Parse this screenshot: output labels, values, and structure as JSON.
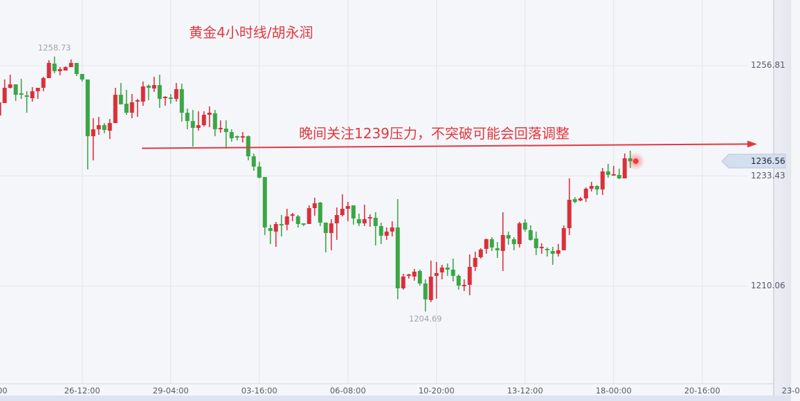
{
  "title": "黄金4小时线/胡永润",
  "annotation": "晚间关注1239压力，不突破可能会回落调整",
  "colors": {
    "up": "#d9303a",
    "down": "#3aa645",
    "annotation": "#e0393f",
    "grid": "#e3e5ec",
    "price_tag": "#d3deef"
  },
  "chart_data": {
    "type": "candlestick",
    "title": "黄金4小时线/胡永润",
    "y_ticks": [
      1256.81,
      1233.43,
      1210.06
    ],
    "x_ticks": [
      "00",
      "26-12:00",
      "29-04:00",
      "03-16:00",
      "06-08:00",
      "10-20:00",
      "13-12:00",
      "18-00:00",
      "20-16:00",
      "23-0"
    ],
    "grid": true,
    "current_price": 1236.56,
    "high_label": 1258.73,
    "low_label": 1204.69,
    "resistance_line": {
      "label": "晚间关注1239压力，不突破可能会回落调整",
      "from_price": 1239.3,
      "to_price": 1240.2
    },
    "candles_ohlc": [
      [
        1246.26,
        1249.33,
        1246.11,
        1249.04
      ],
      [
        1248.89,
        1253.88,
        1248.89,
        1252.12
      ],
      [
        1252.12,
        1254.9,
        1251.97,
        1252.85
      ],
      [
        1252.85,
        1252.85,
        1249.33,
        1250.65
      ],
      [
        1250.95,
        1254.02,
        1249.77,
        1250.65
      ],
      [
        1250.51,
        1251.39,
        1246.84,
        1250.21
      ],
      [
        1249.92,
        1252.26,
        1249.19,
        1251.39
      ],
      [
        1251.39,
        1252.12,
        1249.77,
        1252.12
      ],
      [
        1252.12,
        1254.46,
        1251.39,
        1254.17
      ],
      [
        1254.17,
        1257.98,
        1254.17,
        1257.39
      ],
      [
        1257.25,
        1258.73,
        1255.2,
        1255.64
      ],
      [
        1255.64,
        1256.51,
        1254.76,
        1256.07
      ],
      [
        1255.78,
        1256.66,
        1255.78,
        1256.51
      ],
      [
        1256.51,
        1258.13,
        1256.51,
        1257.39
      ],
      [
        1257.39,
        1257.39,
        1254.61,
        1255.05
      ],
      [
        1255.05,
        1255.05,
        1253.44,
        1253.88
      ],
      [
        1253.88,
        1253.88,
        1234.83,
        1241.86
      ],
      [
        1241.86,
        1245.67,
        1236.73,
        1243.33
      ],
      [
        1243.33,
        1245.96,
        1242.15,
        1244.2
      ],
      [
        1244.2,
        1244.64,
        1242.45,
        1243.18
      ],
      [
        1243.03,
        1245.52,
        1241.27,
        1244.64
      ],
      [
        1244.64,
        1252.12,
        1244.64,
        1250.65
      ],
      [
        1250.65,
        1253.14,
        1248.6,
        1248.6
      ],
      [
        1248.75,
        1251.68,
        1246.4,
        1246.84
      ],
      [
        1246.84,
        1250.8,
        1245.67,
        1249.04
      ],
      [
        1249.19,
        1249.77,
        1245.96,
        1249.48
      ],
      [
        1249.19,
        1253.44,
        1248.31,
        1252.41
      ],
      [
        1252.56,
        1252.85,
        1249.48,
        1252.12
      ],
      [
        1251.97,
        1254.46,
        1251.24,
        1252.7
      ],
      [
        1252.7,
        1254.9,
        1247.87,
        1249.77
      ],
      [
        1249.92,
        1250.36,
        1248.31,
        1250.21
      ],
      [
        1250.07,
        1250.8,
        1248.75,
        1249.77
      ],
      [
        1249.77,
        1253.14,
        1249.19,
        1251.83
      ],
      [
        1251.83,
        1253.0,
        1244.94,
        1246.84
      ],
      [
        1246.84,
        1247.72,
        1243.33,
        1245.08
      ],
      [
        1245.08,
        1247.43,
        1239.66,
        1243.62
      ],
      [
        1243.62,
        1247.14,
        1243.03,
        1244.2
      ],
      [
        1244.2,
        1247.14,
        1243.91,
        1246.4
      ],
      [
        1246.4,
        1248.16,
        1243.76,
        1246.84
      ],
      [
        1246.7,
        1247.43,
        1241.86,
        1243.33
      ],
      [
        1243.33,
        1245.23,
        1242.59,
        1243.62
      ],
      [
        1243.47,
        1245.23,
        1239.22,
        1242.74
      ],
      [
        1242.74,
        1243.33,
        1240.69,
        1241.42
      ],
      [
        1241.86,
        1242.01,
        1240.98,
        1241.57
      ],
      [
        1241.57,
        1242.74,
        1240.54,
        1241.86
      ],
      [
        1241.86,
        1242.01,
        1236.73,
        1237.61
      ],
      [
        1237.61,
        1238.2,
        1234.53,
        1235.41
      ],
      [
        1235.41,
        1236.44,
        1232.92,
        1233.07
      ],
      [
        1233.21,
        1233.21,
        1220.9,
        1222.52
      ],
      [
        1222.37,
        1223.1,
        1219.0,
        1221.78
      ],
      [
        1221.64,
        1223.69,
        1218.41,
        1223.25
      ],
      [
        1223.25,
        1225.15,
        1220.61,
        1222.95
      ],
      [
        1223.1,
        1226.47,
        1221.93,
        1224.86
      ],
      [
        1225.01,
        1225.59,
        1223.83,
        1225.3
      ],
      [
        1224.86,
        1225.15,
        1222.52,
        1223.25
      ],
      [
        1223.39,
        1223.39,
        1222.81,
        1223.25
      ],
      [
        1223.25,
        1227.2,
        1223.25,
        1226.62
      ],
      [
        1226.62,
        1228.82,
        1225.01,
        1227.64
      ],
      [
        1227.79,
        1227.94,
        1222.81,
        1223.54
      ],
      [
        1223.54,
        1223.54,
        1217.24,
        1221.34
      ],
      [
        1221.34,
        1224.27,
        1217.68,
        1223.39
      ],
      [
        1223.39,
        1226.76,
        1219.88,
        1225.15
      ],
      [
        1225.15,
        1229.55,
        1224.86,
        1226.47
      ],
      [
        1226.47,
        1227.94,
        1223.83,
        1227.06
      ],
      [
        1227.2,
        1227.2,
        1223.1,
        1224.42
      ],
      [
        1224.27,
        1225.45,
        1222.81,
        1223.39
      ],
      [
        1223.39,
        1227.35,
        1222.81,
        1224.27
      ],
      [
        1224.42,
        1225.3,
        1222.66,
        1224.71
      ],
      [
        1224.57,
        1225.74,
        1218.7,
        1222.81
      ],
      [
        1222.81,
        1223.54,
        1219.0,
        1220.76
      ],
      [
        1220.76,
        1222.52,
        1219.88,
        1221.64
      ],
      [
        1221.64,
        1223.83,
        1220.61,
        1222.52
      ],
      [
        1222.52,
        1228.52,
        1207.27,
        1209.62
      ],
      [
        1209.62,
        1212.7,
        1209.33,
        1212.11
      ],
      [
        1212.26,
        1212.7,
        1211.67,
        1212.55
      ],
      [
        1212.11,
        1213.72,
        1211.23,
        1213.14
      ],
      [
        1213.28,
        1213.58,
        1210.2,
        1210.64
      ],
      [
        1210.64,
        1211.52,
        1204.69,
        1207.27
      ],
      [
        1207.13,
        1215.48,
        1206.69,
        1212.11
      ],
      [
        1212.26,
        1215.19,
        1207.42,
        1212.84
      ],
      [
        1212.99,
        1214.6,
        1211.52,
        1214.02
      ],
      [
        1214.02,
        1214.89,
        1212.26,
        1213.58
      ],
      [
        1213.58,
        1215.92,
        1211.08,
        1212.26
      ],
      [
        1212.26,
        1212.55,
        1209.33,
        1210.2
      ],
      [
        1210.2,
        1211.52,
        1209.03,
        1210.35
      ],
      [
        1210.35,
        1216.8,
        1208.15,
        1214.16
      ],
      [
        1214.16,
        1217.39,
        1213.28,
        1216.07
      ],
      [
        1216.21,
        1218.12,
        1215.92,
        1217.83
      ],
      [
        1217.97,
        1220.17,
        1216.95,
        1220.02
      ],
      [
        1220.02,
        1220.46,
        1217.53,
        1218.27
      ],
      [
        1218.12,
        1219.44,
        1216.07,
        1217.68
      ],
      [
        1217.53,
        1225.74,
        1213.28,
        1220.9
      ],
      [
        1220.9,
        1221.64,
        1218.85,
        1220.17
      ],
      [
        1220.02,
        1220.46,
        1217.68,
        1219.0
      ],
      [
        1219.0,
        1223.69,
        1218.27,
        1223.39
      ],
      [
        1223.54,
        1224.27,
        1221.64,
        1222.08
      ],
      [
        1221.93,
        1222.95,
        1219.73,
        1219.88
      ],
      [
        1220.17,
        1221.64,
        1216.65,
        1218.12
      ],
      [
        1218.12,
        1219.14,
        1216.95,
        1218.41
      ],
      [
        1217.97,
        1218.27,
        1216.36,
        1217.68
      ],
      [
        1217.53,
        1218.41,
        1214.6,
        1216.95
      ],
      [
        1216.95,
        1219.0,
        1216.36,
        1217.68
      ],
      [
        1217.68,
        1222.95,
        1217.68,
        1222.37
      ],
      [
        1222.37,
        1232.92,
        1220.9,
        1228.38
      ],
      [
        1228.52,
        1228.96,
        1227.64,
        1227.94
      ],
      [
        1228.23,
        1228.96,
        1228.08,
        1228.67
      ],
      [
        1228.67,
        1231.01,
        1227.94,
        1230.72
      ],
      [
        1230.72,
        1232.19,
        1230.14,
        1231.31
      ],
      [
        1231.31,
        1231.45,
        1229.4,
        1230.58
      ],
      [
        1230.58,
        1235.12,
        1229.4,
        1234.39
      ],
      [
        1234.39,
        1236.0,
        1233.07,
        1233.65
      ],
      [
        1233.65,
        1235.56,
        1233.65,
        1233.8
      ],
      [
        1233.65,
        1234.97,
        1232.77,
        1232.92
      ],
      [
        1232.92,
        1238.2,
        1232.92,
        1237.17
      ],
      [
        1237.17,
        1238.78,
        1235.12,
        1236.56
      ]
    ]
  }
}
